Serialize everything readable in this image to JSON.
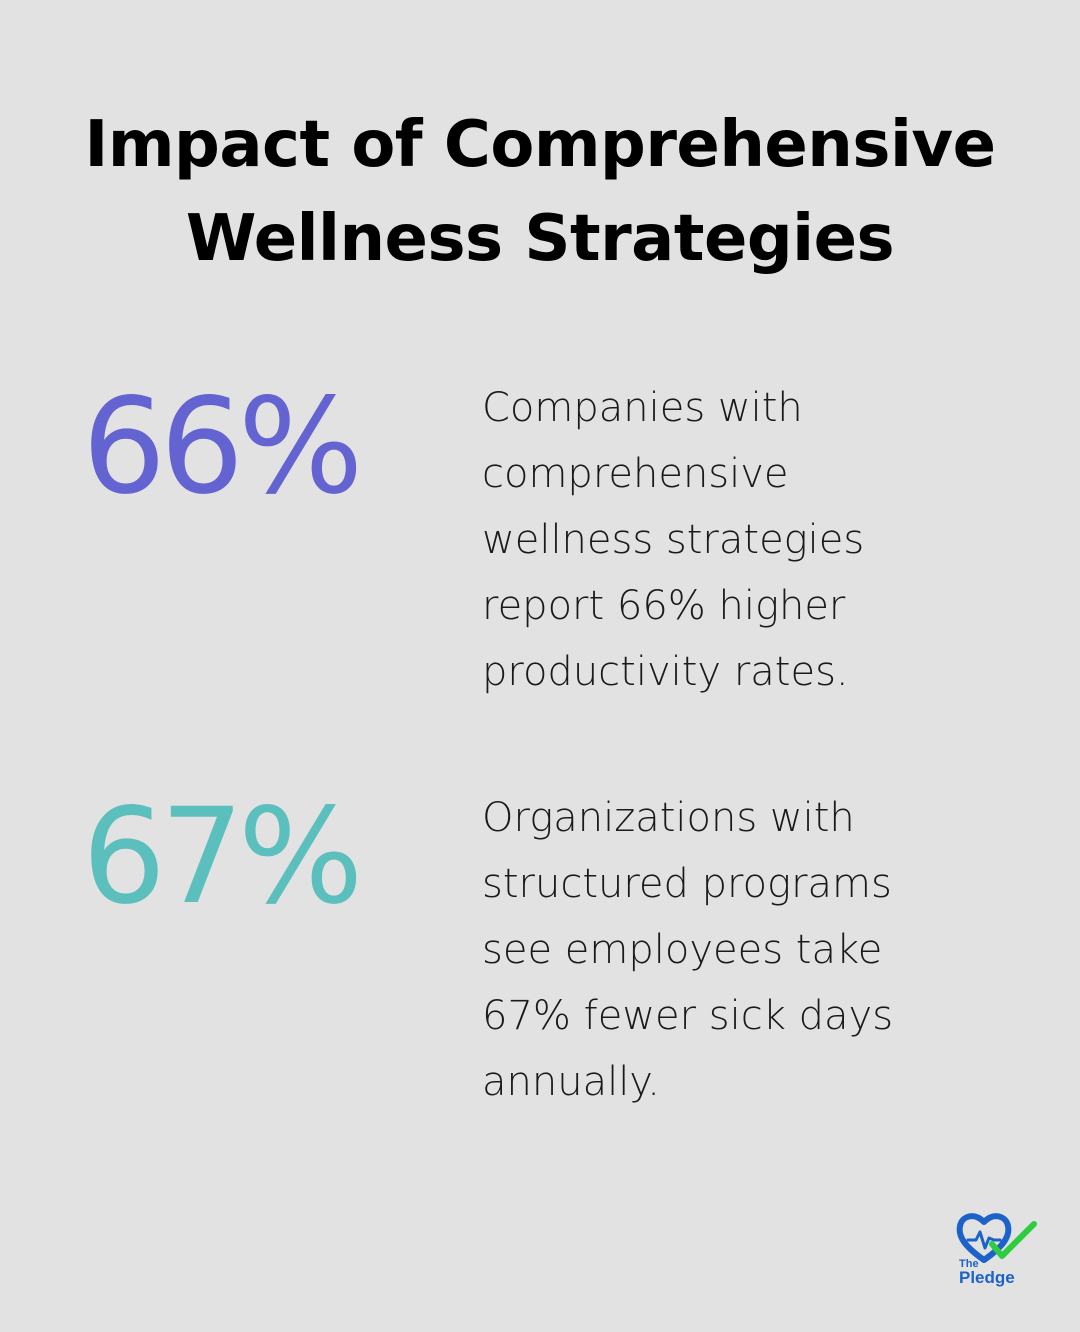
{
  "title": {
    "line1": "Impact of Comprehensive",
    "line2": "Wellness Strategies"
  },
  "stats": [
    {
      "value": "66%",
      "color": "#6363d2",
      "description_lines": [
        "Companies with",
        "comprehensive",
        "wellness strategies",
        "report 66% higher",
        "productivity rates."
      ]
    },
    {
      "value": "67%",
      "color": "#5bbfbe",
      "description_lines": [
        "Organizations with",
        "structured programs",
        "see employees take",
        "67% fewer sick days",
        "annually."
      ]
    }
  ],
  "logo": {
    "icon": "heart-check-icon",
    "the": "The",
    "name": "Pledge",
    "colors": {
      "heart": "#1c62c9",
      "check": "#2ecc40"
    }
  }
}
